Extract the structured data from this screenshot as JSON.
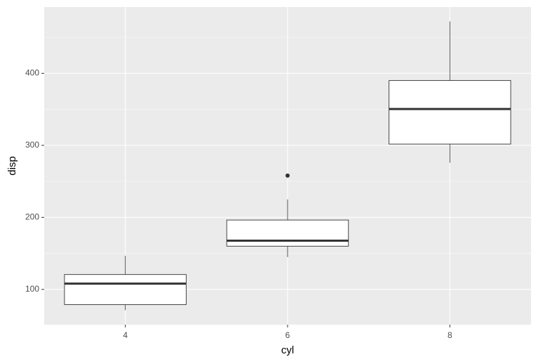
{
  "chart_data": {
    "type": "box",
    "xlabel": "cyl",
    "ylabel": "disp",
    "categories": [
      "4",
      "6",
      "8"
    ],
    "boxes": [
      {
        "min": 71.1,
        "q1": 78.85,
        "median": 108,
        "q3": 120.65,
        "max": 146.7,
        "outliers": []
      },
      {
        "min": 145,
        "q1": 160,
        "median": 167.6,
        "q3": 196.3,
        "max": 225,
        "outliers": [
          258
        ]
      },
      {
        "min": 275.8,
        "q1": 301.75,
        "median": 350.5,
        "q3": 390,
        "max": 472,
        "outliers": []
      }
    ],
    "fill": "#ffffff",
    "stroke": "#333333",
    "ylim": [
      51.05,
      492.05
    ],
    "yticks": [
      100,
      200,
      300,
      400
    ],
    "y_minor_ticks": [
      150,
      250,
      350,
      450
    ],
    "grid": true
  }
}
